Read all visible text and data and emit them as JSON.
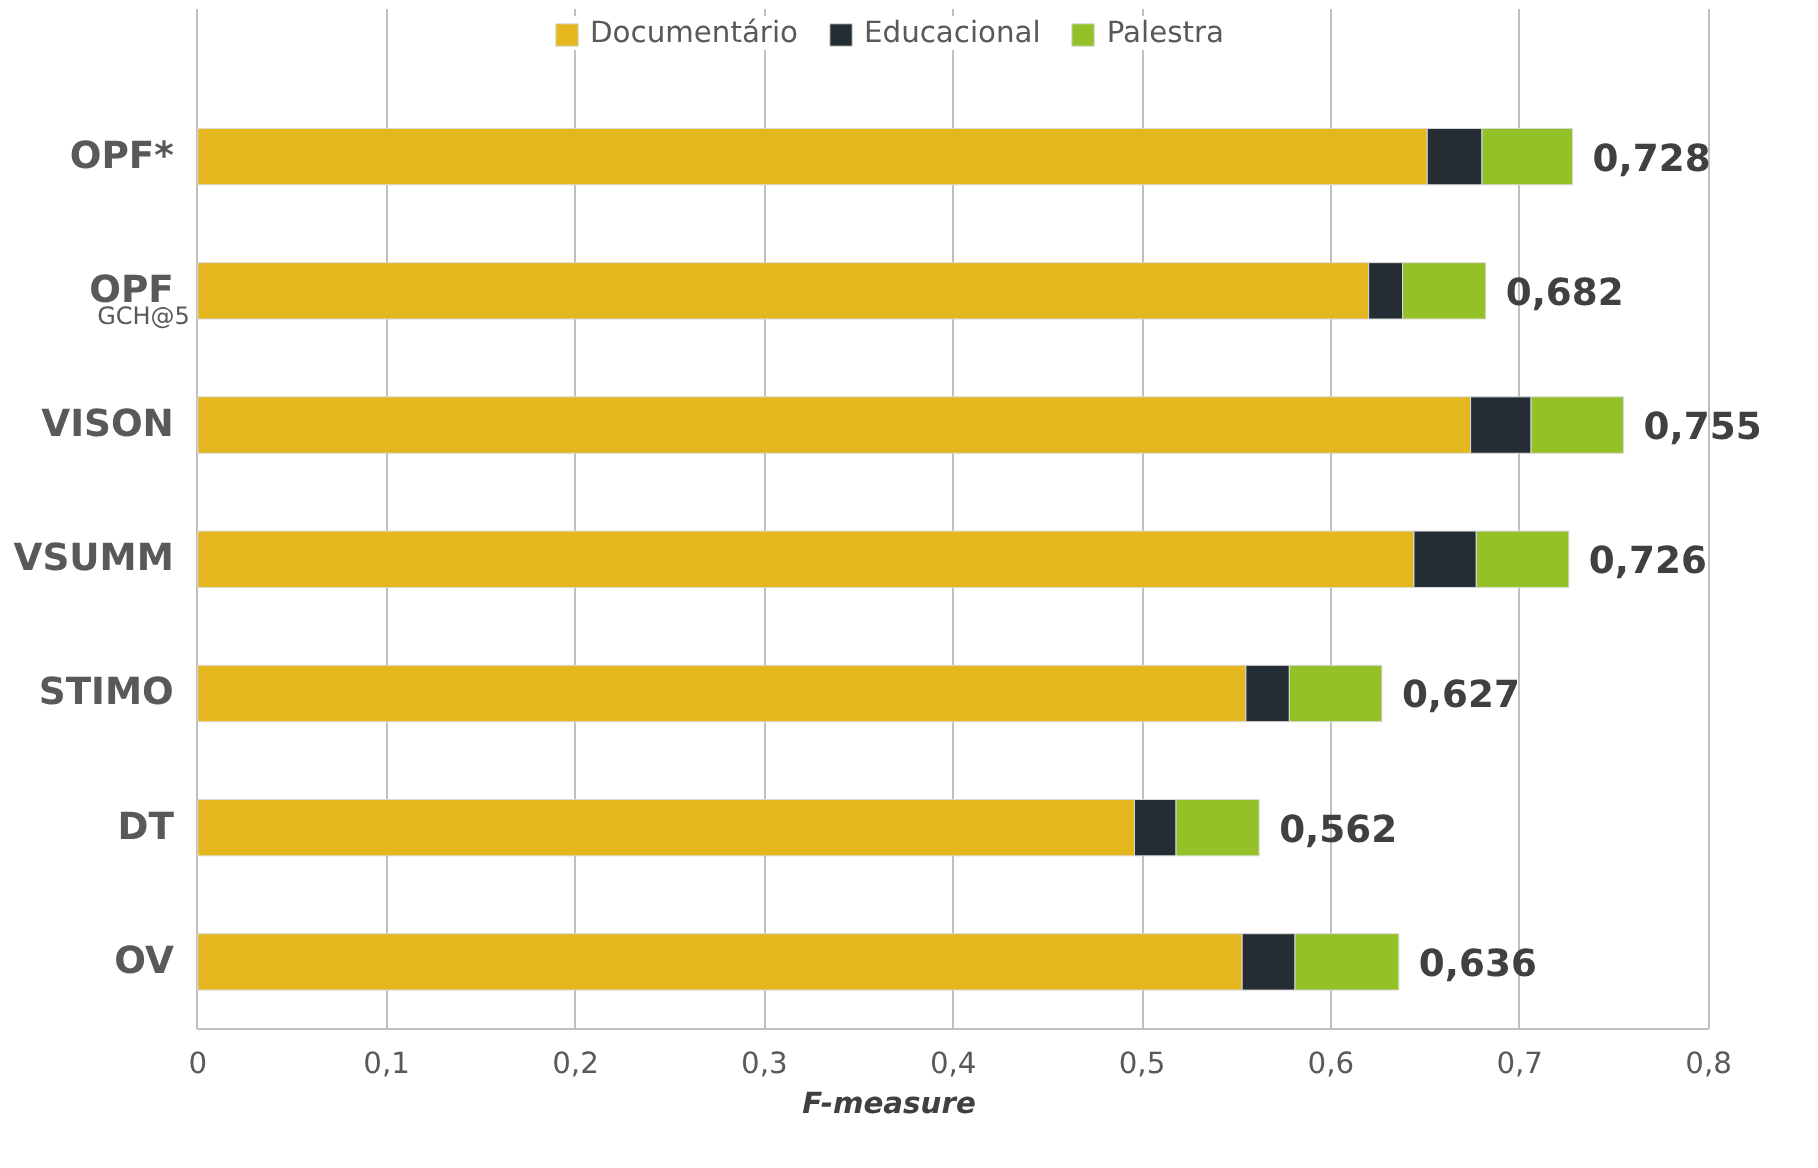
{
  "chart_data": {
    "type": "bar",
    "orientation": "horizontal",
    "stacked": true,
    "categories": [
      "OPF*",
      "OPF$_{GCH@5}$",
      "VISON",
      "VSUMM",
      "STIMO",
      "DT",
      "OV"
    ],
    "series": [
      {
        "name": "Documentário",
        "color": "#e4b71f",
        "values": [
          0.651,
          0.62,
          0.674,
          0.644,
          0.555,
          0.496,
          0.553
        ]
      },
      {
        "name": "Educacional",
        "color": "#232d33",
        "values": [
          0.029,
          0.018,
          0.032,
          0.033,
          0.023,
          0.022,
          0.028
        ]
      },
      {
        "name": "Palestra",
        "color": "#93c127",
        "values": [
          0.048,
          0.044,
          0.049,
          0.049,
          0.049,
          0.044,
          0.055
        ]
      }
    ],
    "totals": [
      "0,728",
      "0,682",
      "0,755",
      "0,726",
      "0,627",
      "0,562",
      "0,636"
    ],
    "xlabel": "F-measure",
    "xlim": [
      0,
      0.8
    ],
    "xticks": [
      {
        "value": 0,
        "label": "0"
      },
      {
        "value": 0.1,
        "label": "0,1"
      },
      {
        "value": 0.2,
        "label": "0,2"
      },
      {
        "value": 0.3,
        "label": "0,3"
      },
      {
        "value": 0.4,
        "label": "0,4"
      },
      {
        "value": 0.5,
        "label": "0,5"
      },
      {
        "value": 0.6,
        "label": "0,6"
      },
      {
        "value": 0.7,
        "label": "0,7"
      },
      {
        "value": 0.8,
        "label": "0,8"
      }
    ],
    "grid": "x",
    "legend": "top"
  }
}
